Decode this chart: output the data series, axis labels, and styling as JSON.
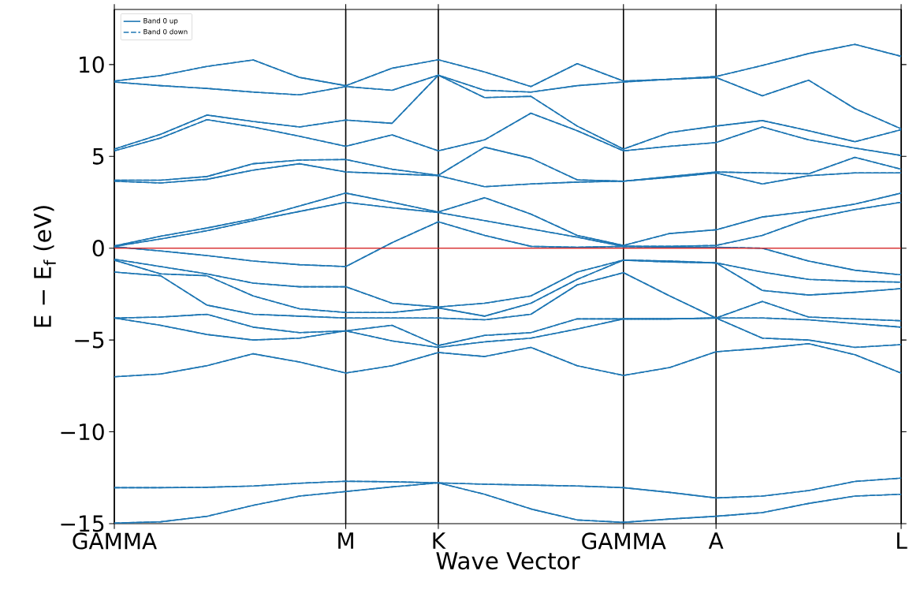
{
  "chart_data": {
    "type": "line",
    "xlabel": "Wave Vector",
    "ylabel": "E − E$_{f}$ (eV)",
    "categories": [
      "GAMMA",
      null,
      null,
      null,
      null,
      "M",
      null,
      "K",
      null,
      null,
      null,
      "GAMMA",
      null,
      "A",
      null,
      null,
      null,
      "L"
    ],
    "ylim": [
      -15,
      13
    ],
    "yticks": [
      {
        "value": -15,
        "label": "−15"
      },
      {
        "value": -10,
        "label": "−10"
      },
      {
        "value": -5,
        "label": "−5"
      },
      0,
      5,
      10
    ],
    "grid": "x",
    "marker": "none",
    "legend": "top left",
    "ref_lines": [
      {
        "axis": "y",
        "value": 0,
        "color": "#d62728"
      }
    ],
    "series": [
      {
        "name": "Band 0 up",
        "color": "#1f77b4",
        "line_style": "solid",
        "values": [
          -14.97,
          -14.9,
          -14.6,
          -14.0,
          -13.5,
          -13.25,
          -13.0,
          -12.78,
          -13.4,
          -14.2,
          -14.8,
          -14.93,
          -14.75,
          -14.6,
          -14.4,
          -13.9,
          -13.5,
          -13.4
        ]
      },
      {
        "color": "#1f77b4",
        "line_style": "solid",
        "values": [
          -13.04,
          -13.04,
          -13.02,
          -12.95,
          -12.8,
          -12.69,
          -12.72,
          -12.78,
          -12.85,
          -12.9,
          -12.95,
          -13.04,
          -13.3,
          -13.6,
          -13.5,
          -13.2,
          -12.7,
          -12.52
        ]
      },
      {
        "color": "#1f77b4",
        "line_style": "solid",
        "values": [
          -7.0,
          -6.85,
          -6.4,
          -5.75,
          -6.2,
          -6.8,
          -6.4,
          -5.68,
          -5.9,
          -5.4,
          -6.4,
          -6.93,
          -6.5,
          -5.64,
          -5.45,
          -5.2,
          -5.8,
          -6.8
        ]
      },
      {
        "color": "#1f77b4",
        "line_style": "solid",
        "values": [
          -3.8,
          -4.2,
          -4.7,
          -5.0,
          -4.9,
          -4.5,
          -5.05,
          -5.4,
          -5.1,
          -4.9,
          -4.4,
          -3.85,
          -3.85,
          -3.8,
          -4.9,
          -5.0,
          -5.4,
          -5.25
        ]
      },
      {
        "color": "#1f77b4",
        "line_style": "solid",
        "values": [
          -3.8,
          -3.75,
          -3.6,
          -4.3,
          -4.6,
          -4.5,
          -4.2,
          -5.3,
          -4.75,
          -4.6,
          -3.85,
          -3.85,
          -3.85,
          -3.8,
          -3.8,
          -3.9,
          -4.1,
          -4.3
        ]
      },
      {
        "color": "#1f77b4",
        "line_style": "solid",
        "values": [
          -1.3,
          -1.5,
          -3.1,
          -3.6,
          -3.7,
          -3.8,
          -3.8,
          -3.8,
          -3.9,
          -3.6,
          -2.0,
          -1.33,
          -2.6,
          -3.8,
          -2.9,
          -3.75,
          -3.85,
          -3.95
        ]
      },
      {
        "color": "#1f77b4",
        "line_style": "solid",
        "values": [
          -0.65,
          -1.4,
          -1.5,
          -2.6,
          -3.3,
          -3.5,
          -3.5,
          -3.25,
          -3.7,
          -3.0,
          -1.7,
          -0.65,
          -0.7,
          -0.8,
          -2.3,
          -2.55,
          -2.4,
          -2.2
        ]
      },
      {
        "color": "#1f77b4",
        "line_style": "solid",
        "values": [
          -0.6,
          -1.0,
          -1.4,
          -1.9,
          -2.1,
          -2.1,
          -3.0,
          -3.2,
          -3.0,
          -2.6,
          -1.3,
          -0.65,
          -0.75,
          -0.8,
          -1.3,
          -1.7,
          -1.8,
          -1.85
        ]
      },
      {
        "color": "#1f77b4",
        "line_style": "solid",
        "values": [
          0.08,
          -0.15,
          -0.4,
          -0.7,
          -0.9,
          -1.0,
          0.3,
          1.44,
          0.7,
          0.1,
          0.05,
          0.1,
          0.05,
          0.05,
          0.0,
          -0.7,
          -1.2,
          -1.45
        ]
      },
      {
        "color": "#1f77b4",
        "line_style": "solid",
        "values": [
          0.1,
          0.5,
          0.95,
          1.5,
          2.0,
          2.5,
          2.2,
          1.94,
          1.5,
          1.05,
          0.6,
          0.1,
          0.1,
          0.15,
          0.7,
          1.6,
          2.1,
          2.5
        ]
      },
      {
        "color": "#1f77b4",
        "line_style": "solid",
        "values": [
          0.12,
          0.65,
          1.1,
          1.6,
          2.3,
          3.0,
          2.5,
          1.97,
          2.75,
          1.86,
          0.7,
          0.15,
          0.8,
          1.0,
          1.7,
          2.0,
          2.4,
          3.0
        ]
      },
      {
        "color": "#1f77b4",
        "line_style": "solid",
        "values": [
          3.65,
          3.55,
          3.75,
          4.25,
          4.6,
          4.15,
          4.05,
          3.95,
          3.35,
          3.5,
          3.6,
          3.65,
          3.85,
          4.1,
          3.5,
          3.95,
          4.1,
          4.1
        ]
      },
      {
        "color": "#1f77b4",
        "line_style": "solid",
        "values": [
          3.7,
          3.7,
          3.9,
          4.6,
          4.8,
          4.83,
          4.3,
          3.97,
          5.5,
          4.9,
          3.72,
          3.65,
          3.9,
          4.15,
          4.1,
          4.05,
          4.95,
          4.3
        ]
      },
      {
        "color": "#1f77b4",
        "line_style": "solid",
        "values": [
          5.3,
          6.0,
          7.0,
          6.6,
          6.1,
          5.55,
          6.17,
          5.3,
          5.9,
          7.35,
          6.4,
          5.3,
          5.55,
          5.75,
          6.6,
          5.9,
          5.45,
          5.05
        ]
      },
      {
        "color": "#1f77b4",
        "line_style": "solid",
        "values": [
          5.4,
          6.2,
          7.25,
          6.9,
          6.6,
          6.98,
          6.8,
          9.42,
          8.2,
          8.27,
          6.65,
          5.4,
          6.3,
          6.65,
          6.95,
          6.4,
          5.8,
          6.45
        ]
      },
      {
        "color": "#1f77b4",
        "line_style": "solid",
        "values": [
          9.05,
          8.85,
          8.7,
          8.5,
          8.35,
          8.8,
          8.6,
          9.42,
          8.6,
          8.5,
          8.85,
          9.05,
          9.2,
          9.3,
          8.3,
          9.15,
          7.6,
          6.5
        ]
      },
      {
        "color": "#1f77b4",
        "line_style": "solid",
        "values": [
          9.1,
          9.4,
          9.9,
          10.25,
          9.3,
          8.85,
          9.8,
          10.26,
          9.6,
          8.8,
          10.05,
          9.1,
          9.2,
          9.35,
          9.95,
          10.6,
          11.1,
          10.45
        ]
      },
      {
        "name": "Band 0 down",
        "color": "#1f77b4",
        "line_style": "dashed",
        "values": [
          -14.97,
          -14.9,
          -14.6,
          -14.0,
          -13.5,
          -13.25,
          -13.0,
          -12.78,
          -13.4,
          -14.2,
          -14.8,
          -14.93,
          -14.75,
          -14.6,
          -14.4,
          -13.9,
          -13.5,
          -13.4
        ]
      },
      {
        "color": "#1f77b4",
        "line_style": "dashed",
        "values": [
          -13.04,
          -13.04,
          -13.02,
          -12.95,
          -12.8,
          -12.69,
          -12.72,
          -12.78,
          -12.85,
          -12.9,
          -12.95,
          -13.04,
          -13.3,
          -13.6,
          -13.5,
          -13.2,
          -12.7,
          -12.52
        ]
      },
      {
        "color": "#1f77b4",
        "line_style": "dashed",
        "values": [
          -7.0,
          -6.85,
          -6.4,
          -5.75,
          -6.2,
          -6.8,
          -6.4,
          -5.68,
          -5.9,
          -5.4,
          -6.4,
          -6.93,
          -6.5,
          -5.64,
          -5.45,
          -5.2,
          -5.8,
          -6.8
        ]
      },
      {
        "color": "#1f77b4",
        "line_style": "dashed",
        "values": [
          -3.8,
          -4.2,
          -4.7,
          -5.0,
          -4.9,
          -4.5,
          -5.05,
          -5.4,
          -5.1,
          -4.9,
          -4.4,
          -3.85,
          -3.85,
          -3.8,
          -4.9,
          -5.0,
          -5.4,
          -5.25
        ]
      },
      {
        "color": "#1f77b4",
        "line_style": "dashed",
        "values": [
          -3.8,
          -3.75,
          -3.6,
          -4.3,
          -4.6,
          -4.5,
          -4.2,
          -5.3,
          -4.75,
          -4.6,
          -3.85,
          -3.85,
          -3.85,
          -3.8,
          -3.8,
          -3.9,
          -4.1,
          -4.3
        ]
      },
      {
        "color": "#1f77b4",
        "line_style": "dashed",
        "values": [
          -1.3,
          -1.5,
          -3.1,
          -3.6,
          -3.7,
          -3.8,
          -3.8,
          -3.8,
          -3.9,
          -3.6,
          -2.0,
          -1.33,
          -2.6,
          -3.8,
          -2.9,
          -3.75,
          -3.85,
          -3.95
        ]
      },
      {
        "color": "#1f77b4",
        "line_style": "dashed",
        "values": [
          -0.65,
          -1.4,
          -1.5,
          -2.6,
          -3.3,
          -3.5,
          -3.5,
          -3.25,
          -3.7,
          -3.0,
          -1.7,
          -0.65,
          -0.7,
          -0.8,
          -2.3,
          -2.55,
          -2.4,
          -2.2
        ]
      },
      {
        "color": "#1f77b4",
        "line_style": "dashed",
        "values": [
          -0.6,
          -1.0,
          -1.4,
          -1.9,
          -2.1,
          -2.1,
          -3.0,
          -3.2,
          -3.0,
          -2.6,
          -1.3,
          -0.65,
          -0.75,
          -0.8,
          -1.3,
          -1.7,
          -1.8,
          -1.85
        ]
      },
      {
        "color": "#1f77b4",
        "line_style": "dashed",
        "values": [
          0.08,
          -0.15,
          -0.4,
          -0.7,
          -0.9,
          -1.0,
          0.3,
          1.44,
          0.7,
          0.1,
          0.05,
          0.1,
          0.05,
          0.05,
          0.0,
          -0.7,
          -1.2,
          -1.45
        ]
      },
      {
        "color": "#1f77b4",
        "line_style": "dashed",
        "values": [
          0.1,
          0.5,
          0.95,
          1.5,
          2.0,
          2.5,
          2.2,
          1.94,
          1.5,
          1.05,
          0.6,
          0.1,
          0.1,
          0.15,
          0.7,
          1.6,
          2.1,
          2.5
        ]
      },
      {
        "color": "#1f77b4",
        "line_style": "dashed",
        "values": [
          0.12,
          0.65,
          1.1,
          1.6,
          2.3,
          3.0,
          2.5,
          1.97,
          2.75,
          1.86,
          0.7,
          0.15,
          0.8,
          1.0,
          1.7,
          2.0,
          2.4,
          3.0
        ]
      },
      {
        "color": "#1f77b4",
        "line_style": "dashed",
        "values": [
          3.65,
          3.55,
          3.75,
          4.25,
          4.6,
          4.15,
          4.05,
          3.95,
          3.35,
          3.5,
          3.6,
          3.65,
          3.85,
          4.1,
          3.5,
          3.95,
          4.1,
          4.1
        ]
      },
      {
        "color": "#1f77b4",
        "line_style": "dashed",
        "values": [
          3.7,
          3.7,
          3.9,
          4.6,
          4.8,
          4.83,
          4.3,
          3.97,
          5.5,
          4.9,
          3.72,
          3.65,
          3.9,
          4.15,
          4.1,
          4.05,
          4.95,
          4.3
        ]
      },
      {
        "color": "#1f77b4",
        "line_style": "dashed",
        "values": [
          5.3,
          6.0,
          7.0,
          6.6,
          6.1,
          5.55,
          6.17,
          5.3,
          5.9,
          7.35,
          6.4,
          5.3,
          5.55,
          5.75,
          6.6,
          5.9,
          5.45,
          5.05
        ]
      },
      {
        "color": "#1f77b4",
        "line_style": "dashed",
        "values": [
          5.4,
          6.2,
          7.25,
          6.9,
          6.6,
          6.98,
          6.8,
          9.42,
          8.2,
          8.27,
          6.65,
          5.4,
          6.3,
          6.65,
          6.95,
          6.4,
          5.8,
          6.45
        ]
      },
      {
        "color": "#1f77b4",
        "line_style": "dashed",
        "values": [
          9.05,
          8.85,
          8.7,
          8.5,
          8.35,
          8.8,
          8.6,
          9.42,
          8.6,
          8.5,
          8.85,
          9.05,
          9.2,
          9.3,
          8.3,
          9.15,
          7.6,
          6.5
        ]
      },
      {
        "color": "#1f77b4",
        "line_style": "dashed",
        "values": [
          9.1,
          9.4,
          9.9,
          10.25,
          9.3,
          8.85,
          9.8,
          10.26,
          9.6,
          8.8,
          10.05,
          9.1,
          9.2,
          9.35,
          9.95,
          10.6,
          11.1,
          10.45
        ]
      }
    ]
  }
}
